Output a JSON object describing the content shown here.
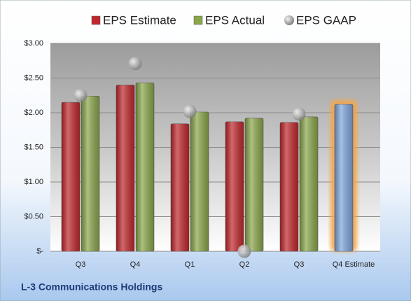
{
  "chart_data": {
    "type": "bar",
    "title": "L-3 Communications Holdings",
    "categories": [
      "Q3",
      "Q4",
      "Q1",
      "Q2",
      "Q3",
      "Q4 Estimate"
    ],
    "series": [
      {
        "name": "EPS Estimate",
        "color": "#c0282d",
        "values": [
          2.15,
          2.4,
          1.84,
          1.87,
          1.86,
          2.12
        ],
        "colors": [
          "#c0282d",
          "#c0282d",
          "#c0282d",
          "#c0282d",
          "#c0282d",
          "#7ea6dc"
        ],
        "glow_color": "#f5a54a"
      },
      {
        "name": "EPS Actual",
        "color": "#8aa64a",
        "values": [
          2.24,
          2.43,
          2.01,
          1.92,
          1.94,
          null
        ]
      },
      {
        "name": "EPS GAAP",
        "color": "#b4b4b4",
        "type": "scatter",
        "values": [
          2.25,
          2.71,
          2.02,
          0,
          1.98,
          null
        ]
      }
    ],
    "ylim": [
      0,
      3
    ],
    "yticks": [
      {
        "value": 0,
        "label": "$-"
      },
      {
        "value": 0.5,
        "label": "$0.50"
      },
      {
        "value": 1,
        "label": "$1.00"
      },
      {
        "value": 1.5,
        "label": "$1.50"
      },
      {
        "value": 2,
        "label": "$2.00"
      },
      {
        "value": 2.5,
        "label": "$2.50"
      },
      {
        "value": 3,
        "label": "$3.00"
      }
    ],
    "grid": true
  }
}
